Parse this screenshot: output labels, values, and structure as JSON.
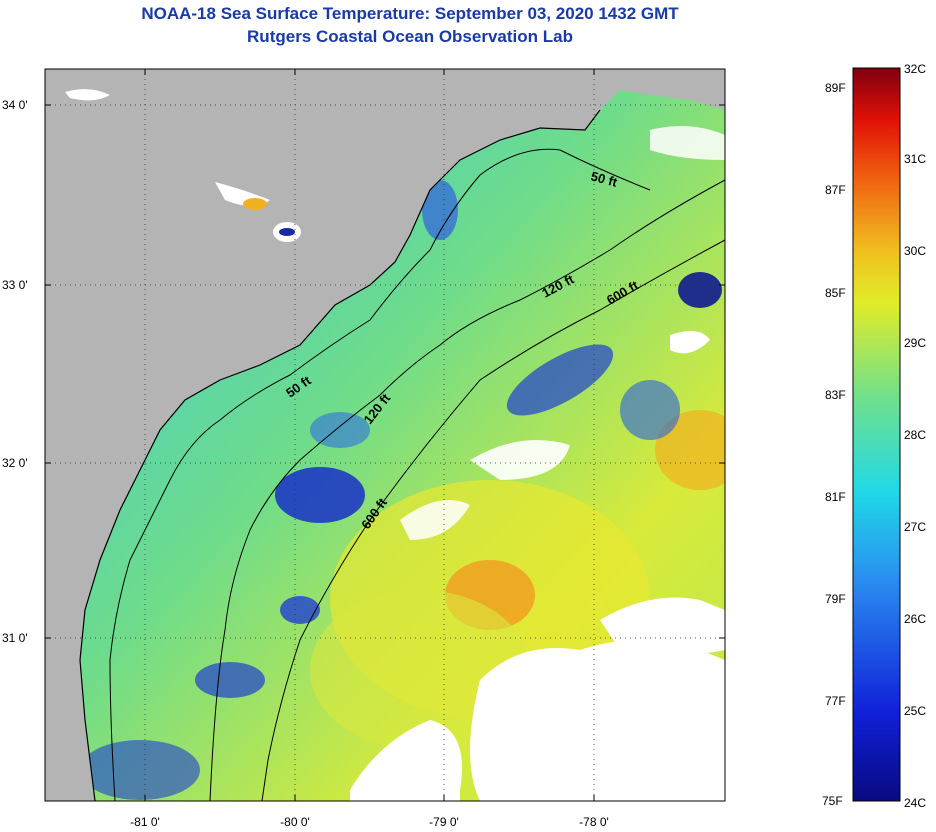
{
  "title": "NOAA-18 Sea Surface Temperature:  September 03, 2020 1432 GMT",
  "subtitle": "Rutgers Coastal Ocean Observation Lab",
  "lat_ticks": [
    "34 0'",
    "33 0'",
    "32 0'",
    "31 0'"
  ],
  "lon_ticks": [
    "-81 0'",
    "-80 0'",
    "-79 0'",
    "-78 0'"
  ],
  "contours": [
    "50 ft",
    "120 ft",
    "600 ft",
    "50 ft",
    "120 ft",
    "600 ft"
  ],
  "colorbar": {
    "fahrenheit": [
      "89F",
      "87F",
      "85F",
      "83F",
      "81F",
      "79F",
      "77F",
      "75F"
    ],
    "celsius": [
      "32C",
      "31C",
      "30C",
      "29C",
      "28C",
      "27C",
      "26C",
      "25C",
      "24C"
    ]
  },
  "colors": {
    "land": "#b4b4b4",
    "cloud": "#ffffff",
    "title": "#1a3aa8"
  }
}
